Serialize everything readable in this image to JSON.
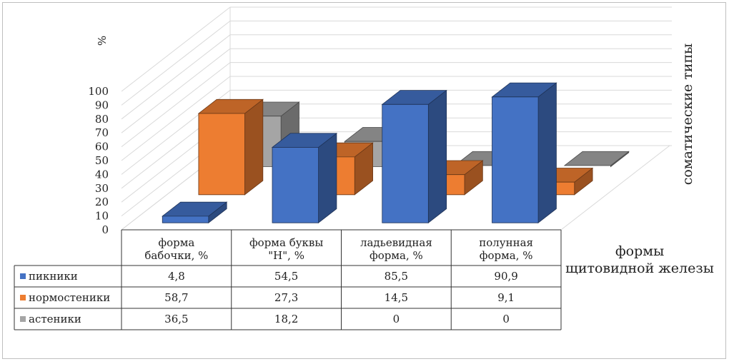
{
  "chart_data": {
    "type": "bar",
    "ylabel": "%",
    "xlabel": "формы щитовидной железы",
    "depth_label": "соматические типы",
    "ylim": [
      0,
      100
    ],
    "yticks": [
      "0",
      "10",
      "20",
      "30",
      "40",
      "50",
      "60",
      "70",
      "80",
      "90",
      "100"
    ],
    "categories": [
      [
        "форма",
        "бабочки, %"
      ],
      [
        "форма буквы",
        "\"Н\", %"
      ],
      [
        "ладьевидная",
        "форма, %"
      ],
      [
        "полунная",
        "форма, %"
      ]
    ],
    "series": [
      {
        "name": "пикники",
        "values": [
          4.8,
          54.5,
          85.5,
          90.9
        ],
        "labels": [
          "4,8",
          "54,5",
          "85,5",
          "90,9"
        ],
        "color": "#4472C4"
      },
      {
        "name": "нормостеники",
        "values": [
          58.7,
          27.3,
          14.5,
          9.1
        ],
        "labels": [
          "58,7",
          "27,3",
          "14,5",
          "9,1"
        ],
        "color": "#ED7D31"
      },
      {
        "name": "астеники",
        "values": [
          36.5,
          18.2,
          0,
          0
        ],
        "labels": [
          "36,5",
          "18,2",
          "0",
          "0"
        ],
        "color": "#A5A5A5"
      }
    ],
    "grid": true,
    "legend": "data-table-left"
  }
}
